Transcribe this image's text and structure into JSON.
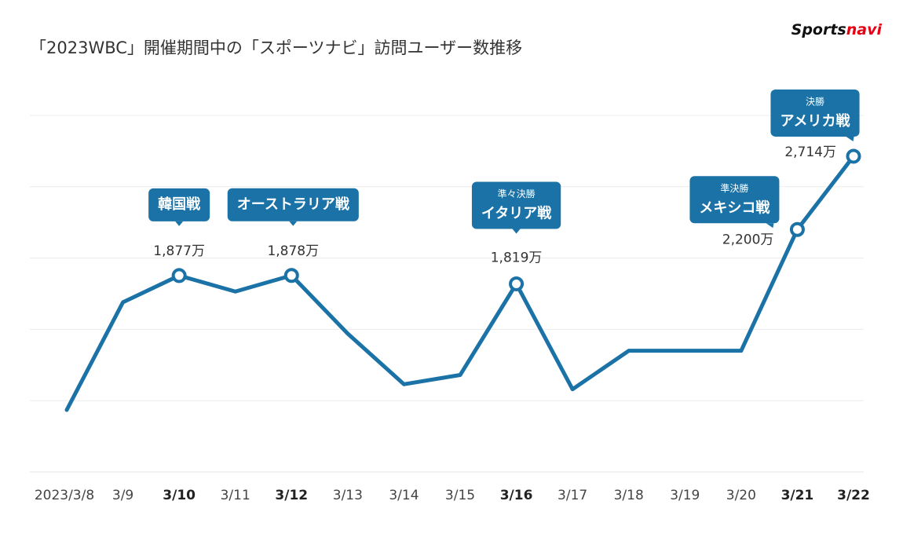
{
  "chart_data": {
    "type": "line",
    "title": "「2023WBC」開催期間中の「スポーツナビ」訪問ユーザー数推移",
    "logo": {
      "part1": "Sports",
      "part2": "navi"
    },
    "categories": [
      "2023/3/8",
      "3/9",
      "3/10",
      "3/11",
      "3/12",
      "3/13",
      "3/14",
      "3/15",
      "3/16",
      "3/17",
      "3/18",
      "3/19",
      "3/20",
      "3/21",
      "3/22"
    ],
    "values": [
      935,
      1690,
      1877,
      1765,
      1878,
      1470,
      1115,
      1180,
      1819,
      1080,
      1350,
      1350,
      1350,
      2200,
      2714
    ],
    "value_labels": [
      null,
      null,
      "1,877万",
      null,
      "1,878万",
      null,
      null,
      null,
      "1,819万",
      null,
      null,
      null,
      null,
      "2,200万",
      "2,714万"
    ],
    "annotations": [
      null,
      null,
      {
        "text": "韓国戦"
      },
      null,
      {
        "text": "オーストラリア戦"
      },
      null,
      null,
      null,
      {
        "sub": "準々決勝",
        "text": "イタリア戦"
      },
      null,
      null,
      null,
      null,
      {
        "sub": "準決勝",
        "text": "メキシコ戦"
      },
      {
        "sub": "決勝",
        "text": "アメリカ戦"
      }
    ],
    "color": "#1a72a6",
    "ylim": [
      500,
      3000
    ],
    "yticks": [
      1000,
      1500,
      2000,
      2500,
      3000
    ],
    "grid": true
  }
}
